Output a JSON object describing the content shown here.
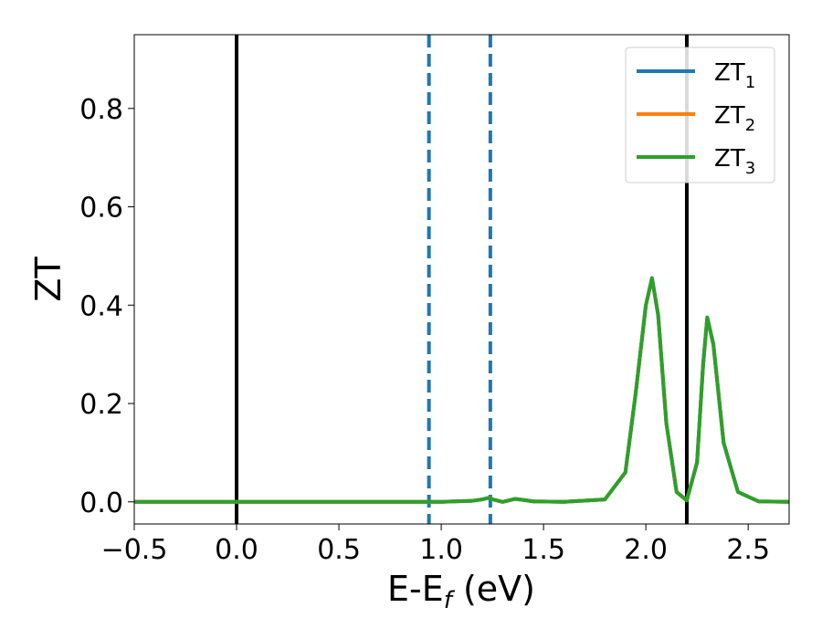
{
  "chart_data": {
    "type": "line",
    "xlabel_main": "E-E",
    "xlabel_sub": "f",
    "xlabel_unit": " (eV)",
    "ylabel": "ZT",
    "xlim": [
      -0.5,
      2.7
    ],
    "ylim": [
      -0.045,
      0.95
    ],
    "xticks": [
      -0.5,
      0.0,
      0.5,
      1.0,
      1.5,
      2.0,
      2.5
    ],
    "xtick_labels": [
      "−0.5",
      "0.0",
      "0.5",
      "1.0",
      "1.5",
      "2.0",
      "2.5"
    ],
    "yticks": [
      0.0,
      0.2,
      0.4,
      0.6,
      0.8
    ],
    "ytick_labels": [
      "0.0",
      "0.2",
      "0.4",
      "0.6",
      "0.8"
    ],
    "grid": false,
    "legend_position": "top-right",
    "vlines": [
      {
        "x": 0.0,
        "style": "solid",
        "color": "#000000"
      },
      {
        "x": 2.2,
        "style": "solid",
        "color": "#000000"
      },
      {
        "x": 0.94,
        "style": "dashed",
        "color": "#1f77b4"
      },
      {
        "x": 1.24,
        "style": "dashed",
        "color": "#1f77b4"
      }
    ],
    "series": [
      {
        "name_main": "ZT",
        "name_sub": "1",
        "color": "#1f77b4",
        "x": [
          -0.5,
          0.0,
          0.5,
          1.0,
          1.15,
          1.2,
          1.23,
          1.26,
          1.3,
          1.33,
          1.36,
          1.4,
          1.45,
          1.6,
          1.8,
          1.9,
          1.95,
          2.0,
          2.03,
          2.06,
          2.1,
          2.15,
          2.2,
          2.25,
          2.28,
          2.3,
          2.33,
          2.38,
          2.45,
          2.55,
          2.7
        ],
        "y": [
          0.0,
          0.0,
          0.0,
          0.0,
          0.002,
          0.005,
          0.008,
          0.004,
          0.0,
          0.003,
          0.006,
          0.004,
          0.001,
          0.0,
          0.005,
          0.06,
          0.22,
          0.4,
          0.455,
          0.38,
          0.16,
          0.02,
          0.003,
          0.08,
          0.28,
          0.375,
          0.32,
          0.12,
          0.02,
          0.001,
          0.0
        ]
      },
      {
        "name_main": "ZT",
        "name_sub": "2",
        "color": "#ff7f0e",
        "x": [
          -0.5,
          0.0,
          0.5,
          1.0,
          1.15,
          1.2,
          1.23,
          1.26,
          1.3,
          1.33,
          1.36,
          1.4,
          1.45,
          1.6,
          1.8,
          1.9,
          1.95,
          2.0,
          2.03,
          2.06,
          2.1,
          2.15,
          2.2,
          2.25,
          2.28,
          2.3,
          2.33,
          2.38,
          2.45,
          2.55,
          2.7
        ],
        "y": [
          0.0,
          0.0,
          0.0,
          0.0,
          0.002,
          0.005,
          0.008,
          0.004,
          0.0,
          0.003,
          0.006,
          0.004,
          0.001,
          0.0,
          0.005,
          0.06,
          0.22,
          0.4,
          0.455,
          0.38,
          0.16,
          0.02,
          0.003,
          0.08,
          0.28,
          0.375,
          0.32,
          0.12,
          0.02,
          0.001,
          0.0
        ]
      },
      {
        "name_main": "ZT",
        "name_sub": "3",
        "color": "#2ca02c",
        "x": [
          -0.5,
          0.0,
          0.5,
          1.0,
          1.15,
          1.2,
          1.23,
          1.26,
          1.3,
          1.33,
          1.36,
          1.4,
          1.45,
          1.6,
          1.8,
          1.9,
          1.95,
          2.0,
          2.03,
          2.06,
          2.1,
          2.15,
          2.2,
          2.25,
          2.28,
          2.3,
          2.33,
          2.38,
          2.45,
          2.55,
          2.7
        ],
        "y": [
          0.0,
          0.0,
          0.0,
          0.0,
          0.002,
          0.005,
          0.008,
          0.004,
          0.0,
          0.003,
          0.006,
          0.004,
          0.001,
          0.0,
          0.005,
          0.06,
          0.22,
          0.4,
          0.455,
          0.38,
          0.16,
          0.02,
          0.003,
          0.08,
          0.28,
          0.375,
          0.32,
          0.12,
          0.02,
          0.001,
          0.0
        ]
      }
    ]
  }
}
